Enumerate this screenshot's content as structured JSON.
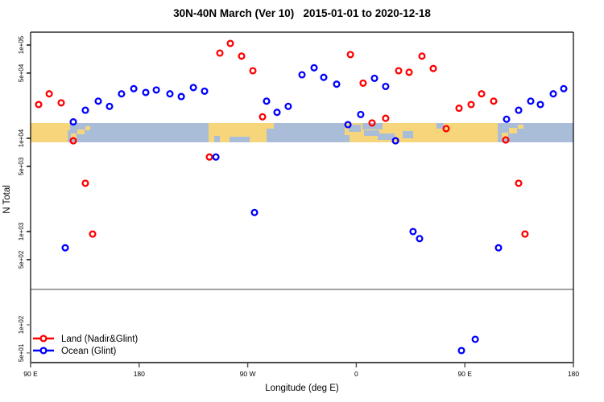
{
  "title": "30N-40N March (Ver 10)   2015-01-01 to 2020-12-18",
  "axes": {
    "x": {
      "label": "Longitude (deg E)",
      "range": [
        90,
        540
      ],
      "note": "longitude axis wraps, tick labels shown modulo 360",
      "ticks": [
        {
          "value": 90,
          "label": "90 E"
        },
        {
          "value": 180,
          "label": "180"
        },
        {
          "value": 270,
          "label": "90 W"
        },
        {
          "value": 360,
          "label": "0"
        },
        {
          "value": 450,
          "label": "90 E"
        },
        {
          "value": 540,
          "label": "180"
        }
      ]
    },
    "y": {
      "label": "N Total",
      "scale": "log",
      "ticks": [
        {
          "value": 100000,
          "label": "1e+05",
          "muted": false
        },
        {
          "value": 50000,
          "label": "5e+04",
          "muted": false
        },
        {
          "value": 10000,
          "label": "1e+04",
          "muted": false
        },
        {
          "value": 5000,
          "label": "5e+03",
          "muted": false
        },
        {
          "value": 1000,
          "label": "1e+03",
          "muted": false
        },
        {
          "value": 500,
          "label": "5e+02",
          "muted": false
        },
        {
          "value": 100,
          "label": "1e+02",
          "muted": true
        },
        {
          "value": 50,
          "label": "5e+01",
          "muted": true
        }
      ]
    }
  },
  "legend": {
    "items": [
      {
        "label": "Land (Nadir&Glint)",
        "color": "#ff0000"
      },
      {
        "label": "Ocean (Glint)",
        "color": "#0000ff"
      }
    ]
  },
  "ref_line": {
    "n": 240,
    "color": "#949494"
  },
  "colors": {
    "land_point": "#ff0000",
    "ocean_point": "#0000ff",
    "axis": "#000000",
    "axis_bottom": "#4d4d4d",
    "muted_tick": "#808080",
    "map_land": "#f7d67b",
    "map_sea": "#a9bdd9"
  },
  "chart_data": {
    "type": "scatter",
    "xlabel": "Longitude (deg E)",
    "ylabel": "N Total",
    "x_range": [
      90,
      540
    ],
    "y_scale": "log",
    "y_range_shown": [
      37,
      120000
    ],
    "grid": false,
    "legend_position": "bottom-left",
    "series": [
      {
        "name": "Land (Nadir&Glint)",
        "color": "#ff0000",
        "points": [
          [
            96.7,
            23000
          ],
          [
            105.4,
            30000
          ],
          [
            115.4,
            24000
          ],
          [
            125.4,
            9400
          ],
          [
            135.4,
            3300
          ],
          [
            141.4,
            940
          ],
          [
            238.2,
            6300
          ],
          [
            246.9,
            82000
          ],
          [
            255.6,
            104000
          ],
          [
            264.9,
            76000
          ],
          [
            274.3,
            53000
          ],
          [
            282.3,
            17000
          ],
          [
            355.1,
            79000
          ],
          [
            365.7,
            39000
          ],
          [
            373.1,
            14600
          ],
          [
            384.4,
            16400
          ],
          [
            395.1,
            53000
          ],
          [
            403.8,
            51000
          ],
          [
            414.5,
            76000
          ],
          [
            423.8,
            56000
          ],
          [
            434.5,
            12700
          ],
          [
            445.2,
            21000
          ],
          [
            455.2,
            23000
          ],
          [
            463.9,
            30000
          ],
          [
            473.9,
            25000
          ],
          [
            483.9,
            9600
          ],
          [
            494.6,
            3300
          ],
          [
            499.9,
            940
          ]
        ]
      },
      {
        "name": "Ocean (Glint)",
        "color": "#0000ff",
        "points": [
          [
            118.7,
            670
          ],
          [
            125.4,
            15000
          ],
          [
            135.4,
            20000
          ],
          [
            146.1,
            25000
          ],
          [
            155.4,
            22000
          ],
          [
            165.4,
            30000
          ],
          [
            175.5,
            34000
          ],
          [
            185.5,
            31000
          ],
          [
            194.2,
            33000
          ],
          [
            205.5,
            30000
          ],
          [
            214.9,
            28000
          ],
          [
            224.9,
            35000
          ],
          [
            234.2,
            32000
          ],
          [
            243.6,
            6300
          ],
          [
            275.6,
            1600
          ],
          [
            285.6,
            25000
          ],
          [
            294.3,
            19000
          ],
          [
            303.6,
            22000
          ],
          [
            315.0,
            48000
          ],
          [
            325.0,
            57000
          ],
          [
            333.0,
            45000
          ],
          [
            343.7,
            38000
          ],
          [
            353.1,
            14000
          ],
          [
            363.7,
            18000
          ],
          [
            375.1,
            44000
          ],
          [
            384.4,
            36000
          ],
          [
            392.5,
            9400
          ],
          [
            407.1,
            1000
          ],
          [
            412.5,
            840
          ],
          [
            447.2,
            53
          ],
          [
            458.6,
            70
          ],
          [
            477.9,
            670
          ],
          [
            484.6,
            16000
          ],
          [
            494.6,
            20000
          ],
          [
            504.6,
            25000
          ],
          [
            512.6,
            23000
          ],
          [
            523.3,
            30000
          ],
          [
            532.0,
            34000
          ]
        ]
      }
    ]
  },
  "map_band": {
    "y": 153,
    "h": 24,
    "land": [
      [
        38,
        153,
        46,
        24
      ],
      [
        84,
        153,
        3,
        9
      ],
      [
        88,
        166,
        7,
        7
      ],
      [
        96,
        161,
        9,
        6
      ],
      [
        106,
        157,
        6,
        5
      ],
      [
        259,
        153,
        72,
        24
      ],
      [
        331,
        153,
        9,
        7
      ],
      [
        428,
        153,
        190,
        24
      ],
      [
        623,
        165,
        8,
        8
      ],
      [
        632,
        159,
        10,
        7
      ],
      [
        643,
        155,
        7,
        5
      ]
    ],
    "sea_patches": [
      [
        266,
        169,
        7,
        8
      ],
      [
        285,
        170,
        25,
        7
      ],
      [
        428,
        168,
        6,
        9
      ],
      [
        433,
        155,
        15,
        9
      ],
      [
        450,
        153,
        25,
        8
      ],
      [
        452,
        162,
        19,
        7
      ],
      [
        469,
        166,
        21,
        8
      ],
      [
        500,
        163,
        13,
        9
      ],
      [
        542,
        153,
        9,
        7
      ]
    ]
  }
}
